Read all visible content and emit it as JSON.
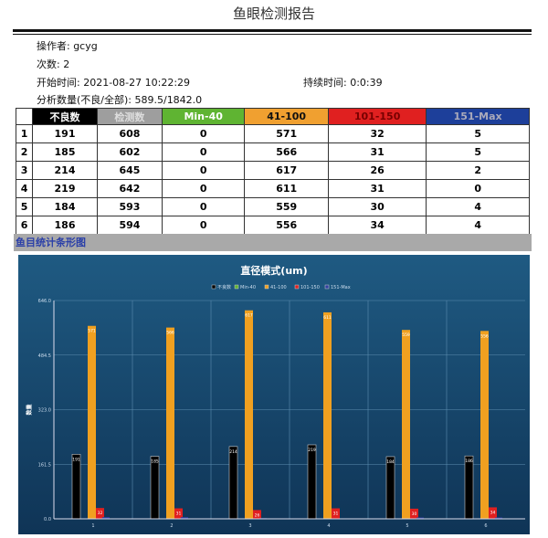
{
  "report": {
    "title": "鱼眼检测报告",
    "operator": "操作者: gcyg",
    "count": "次数: 2",
    "start": "开始时间: 2021-08-27 10:22:29",
    "duration": "持续时间: 0:0:39",
    "analysis": "分析数量(不良/全部): 589.5/1842.0"
  },
  "table": {
    "headers": [
      "",
      "不良数",
      "检测数",
      "Min-40",
      "41-100",
      "101-150",
      "151-Max"
    ],
    "header_colors": [
      "#ffffff",
      "#000000",
      "#9e9e9e",
      "#5fb432",
      "#f0a030",
      "#e02020",
      "#1d3f9a"
    ],
    "header_text_colors": [
      "#000",
      "#fff",
      "#ddd",
      "#fff",
      "#111",
      "#700",
      "#aab"
    ],
    "rows": [
      [
        "1",
        "191",
        "608",
        "0",
        "571",
        "32",
        "5"
      ],
      [
        "2",
        "185",
        "602",
        "0",
        "566",
        "31",
        "5"
      ],
      [
        "3",
        "214",
        "645",
        "0",
        "617",
        "26",
        "2"
      ],
      [
        "4",
        "219",
        "642",
        "0",
        "611",
        "31",
        "0"
      ],
      [
        "5",
        "184",
        "593",
        "0",
        "559",
        "30",
        "4"
      ],
      [
        "6",
        "186",
        "594",
        "0",
        "556",
        "34",
        "4"
      ]
    ]
  },
  "section_label": "鱼目统计条形图",
  "chart_data": {
    "type": "bar",
    "title": "直径模式(um)",
    "ylabel": "数量",
    "categories": [
      "1",
      "2",
      "3",
      "4",
      "5",
      "6"
    ],
    "ylim": [
      0,
      646
    ],
    "yticks": [
      "0.0",
      "161.5",
      "323.0",
      "484.5",
      "646.0"
    ],
    "grid": true,
    "legend": "top",
    "series": [
      {
        "name": "不良数",
        "color": "#000000",
        "values": [
          191,
          185,
          214,
          219,
          184,
          186
        ]
      },
      {
        "name": "Min-40",
        "color": "#5fb432",
        "values": [
          0,
          0,
          0,
          0,
          0,
          0
        ]
      },
      {
        "name": "41-100",
        "color": "#f0a020",
        "values": [
          571,
          566,
          617,
          611,
          559,
          556
        ]
      },
      {
        "name": "101-150",
        "color": "#e02020",
        "values": [
          32,
          31,
          26,
          31,
          30,
          34
        ]
      },
      {
        "name": "151-Max",
        "color": "#3040a0",
        "values": [
          5,
          5,
          2,
          0,
          4,
          4
        ]
      }
    ]
  }
}
